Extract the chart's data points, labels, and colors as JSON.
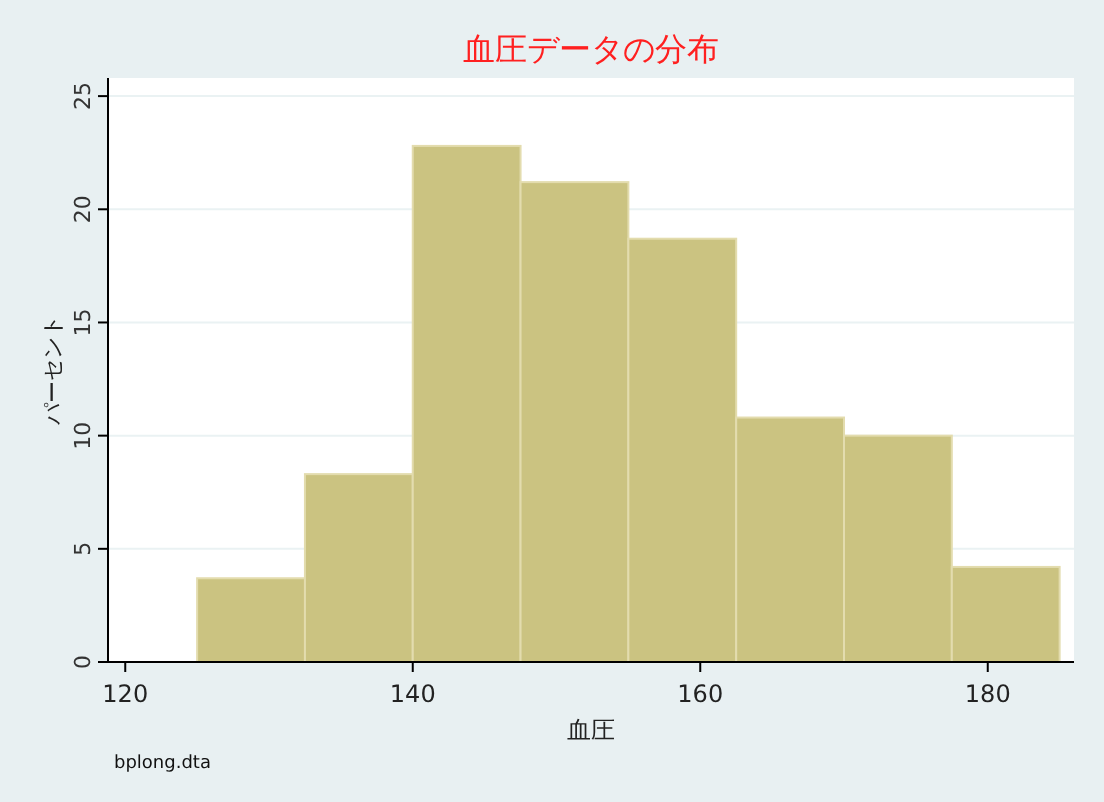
{
  "chart_data": {
    "type": "histogram",
    "title": "血圧データの分布",
    "xlabel": "血圧",
    "ylabel": "パーセント",
    "annotations": [
      "bplong.dta"
    ],
    "bins": [
      125,
      132.5,
      140,
      147.5,
      155,
      162.5,
      170,
      177.5,
      185
    ],
    "values": [
      3.7,
      8.3,
      22.8,
      21.2,
      18.7,
      10.8,
      10.0,
      4.2
    ],
    "color": "#cbc381",
    "xlim": [
      118.8,
      186
    ],
    "ylim": [
      0,
      25.8
    ],
    "xticks": [
      120,
      140,
      160,
      180
    ],
    "yticks": [
      0,
      5,
      10,
      15,
      20,
      25
    ],
    "grid": "y"
  }
}
